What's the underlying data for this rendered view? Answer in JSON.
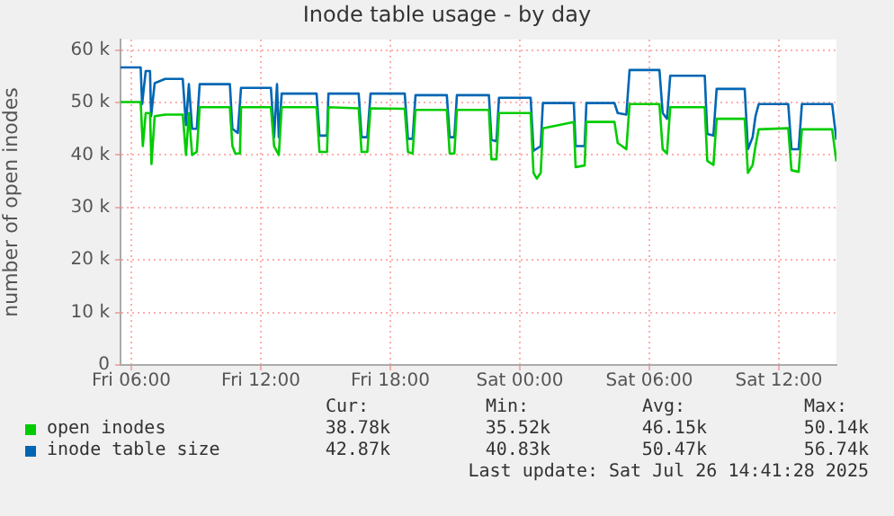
{
  "chart_data": {
    "type": "line",
    "title": "Inode table usage - by day",
    "ylabel": "number of open inodes",
    "xlim": [
      "2025-07-25T05:30",
      "2025-07-26T14:40"
    ],
    "xticks": [
      {
        "value": "2025-07-25T06:00",
        "label": "Fri 06:00"
      },
      {
        "value": "2025-07-25T12:00",
        "label": "Fri 12:00"
      },
      {
        "value": "2025-07-25T18:00",
        "label": "Fri 18:00"
      },
      {
        "value": "2025-07-26T00:00",
        "label": "Sat 00:00"
      },
      {
        "value": "2025-07-26T06:00",
        "label": "Sat 06:00"
      },
      {
        "value": "2025-07-26T12:00",
        "label": "Sat 12:00"
      }
    ],
    "ylim": [
      0,
      62
    ],
    "yticks": [
      {
        "value": 0,
        "label": "0"
      },
      {
        "value": 10,
        "label": "10 k"
      },
      {
        "value": 20,
        "label": "20 k"
      },
      {
        "value": 30,
        "label": "30 k"
      },
      {
        "value": 40,
        "label": "40 k"
      },
      {
        "value": 50,
        "label": "50 k"
      },
      {
        "value": 60,
        "label": "60 k"
      }
    ],
    "grid": true,
    "legend": "bottom left",
    "marker": "none",
    "line_style": "solid",
    "series": [
      {
        "name": "open inodes",
        "color": "#00cc00",
        "x": [
          "2025-07-25T05:30",
          "2025-07-25T06:26",
          "2025-07-25T06:32",
          "2025-07-25T06:40",
          "2025-07-25T06:52",
          "2025-07-25T06:56",
          "2025-07-25T07:05",
          "2025-07-25T07:34",
          "2025-07-25T08:23",
          "2025-07-25T08:32",
          "2025-07-25T08:40",
          "2025-07-25T08:49",
          "2025-07-25T09:02",
          "2025-07-25T09:10",
          "2025-07-25T10:34",
          "2025-07-25T10:41",
          "2025-07-25T10:49",
          "2025-07-25T11:02",
          "2025-07-25T11:05",
          "2025-07-25T12:28",
          "2025-07-25T12:37",
          "2025-07-25T12:50",
          "2025-07-25T12:58",
          "2025-07-25T14:35",
          "2025-07-25T14:43",
          "2025-07-25T15:04",
          "2025-07-25T15:08",
          "2025-07-25T16:32",
          "2025-07-25T16:40",
          "2025-07-25T16:56",
          "2025-07-25T17:05",
          "2025-07-25T18:40",
          "2025-07-25T18:49",
          "2025-07-25T19:02",
          "2025-07-25T19:10",
          "2025-07-25T20:37",
          "2025-07-25T20:45",
          "2025-07-25T20:58",
          "2025-07-25T21:05",
          "2025-07-25T22:34",
          "2025-07-25T22:41",
          "2025-07-25T22:55",
          "2025-07-25T23:02",
          "2025-07-26T00:30",
          "2025-07-26T00:38",
          "2025-07-26T00:47",
          "2025-07-26T00:58",
          "2025-07-26T01:04",
          "2025-07-26T02:30",
          "2025-07-26T02:35",
          "2025-07-26T03:00",
          "2025-07-26T03:05",
          "2025-07-26T04:23",
          "2025-07-26T04:32",
          "2025-07-26T04:56",
          "2025-07-26T05:05",
          "2025-07-26T06:28",
          "2025-07-26T06:37",
          "2025-07-26T06:49",
          "2025-07-26T06:58",
          "2025-07-26T08:34",
          "2025-07-26T08:41",
          "2025-07-26T08:58",
          "2025-07-26T09:07",
          "2025-07-26T10:25",
          "2025-07-26T10:34",
          "2025-07-26T10:47",
          "2025-07-26T10:55",
          "2025-07-26T11:04",
          "2025-07-26T12:26",
          "2025-07-26T12:35",
          "2025-07-26T12:55",
          "2025-07-26T13:04",
          "2025-07-26T14:28",
          "2025-07-26T14:40"
        ],
        "values": [
          50.1,
          50.1,
          41.7,
          48,
          48,
          38.3,
          47.4,
          47.7,
          47.7,
          40,
          48,
          40,
          40.6,
          49.1,
          49.1,
          41.7,
          40.3,
          40.3,
          49.1,
          49.1,
          41.7,
          40,
          49.1,
          49.1,
          40.6,
          40.6,
          49.1,
          48.9,
          40.6,
          40.6,
          48.9,
          48.8,
          40.6,
          40.3,
          48.6,
          48.6,
          40.3,
          40.3,
          48.6,
          48.6,
          39.2,
          39.2,
          48,
          48,
          36.6,
          35.5,
          36.6,
          45.1,
          46.3,
          37.7,
          38,
          46.3,
          46.3,
          42.3,
          41.1,
          49.7,
          49.7,
          41.1,
          40.3,
          49.1,
          49.1,
          38.9,
          38.1,
          46.9,
          46.9,
          36.6,
          38.1,
          41.7,
          44.9,
          45.1,
          37.1,
          36.8,
          44.9,
          44.9,
          38.8
        ]
      },
      {
        "name": "inode table size",
        "color": "#0066b3",
        "x": [
          "2025-07-25T05:30",
          "2025-07-25T06:26",
          "2025-07-25T06:30",
          "2025-07-25T06:40",
          "2025-07-25T06:52",
          "2025-07-25T06:55",
          "2025-07-25T07:05",
          "2025-07-25T07:34",
          "2025-07-25T08:23",
          "2025-07-25T08:32",
          "2025-07-25T08:40",
          "2025-07-25T08:49",
          "2025-07-25T09:02",
          "2025-07-25T09:10",
          "2025-07-25T10:34",
          "2025-07-25T10:41",
          "2025-07-25T10:56",
          "2025-07-25T11:05",
          "2025-07-25T12:28",
          "2025-07-25T12:37",
          "2025-07-25T12:45",
          "2025-07-25T12:50",
          "2025-07-25T12:58",
          "2025-07-25T14:35",
          "2025-07-25T14:43",
          "2025-07-25T15:04",
          "2025-07-25T15:08",
          "2025-07-25T16:32",
          "2025-07-25T16:40",
          "2025-07-25T16:56",
          "2025-07-25T17:05",
          "2025-07-25T18:40",
          "2025-07-25T18:49",
          "2025-07-25T19:02",
          "2025-07-25T19:10",
          "2025-07-25T20:37",
          "2025-07-25T20:45",
          "2025-07-25T20:58",
          "2025-07-25T21:05",
          "2025-07-25T22:34",
          "2025-07-25T22:41",
          "2025-07-25T22:55",
          "2025-07-25T23:02",
          "2025-07-26T00:30",
          "2025-07-26T00:38",
          "2025-07-26T00:58",
          "2025-07-26T01:04",
          "2025-07-26T02:30",
          "2025-07-26T02:35",
          "2025-07-26T03:00",
          "2025-07-26T03:05",
          "2025-07-26T04:23",
          "2025-07-26T04:32",
          "2025-07-26T04:56",
          "2025-07-26T05:05",
          "2025-07-26T06:28",
          "2025-07-26T06:37",
          "2025-07-26T06:49",
          "2025-07-26T06:58",
          "2025-07-26T08:34",
          "2025-07-26T08:41",
          "2025-07-26T08:58",
          "2025-07-26T09:07",
          "2025-07-26T10:25",
          "2025-07-26T10:34",
          "2025-07-26T10:47",
          "2025-07-26T10:55",
          "2025-07-26T11:04",
          "2025-07-26T12:26",
          "2025-07-26T12:35",
          "2025-07-26T12:55",
          "2025-07-26T13:04",
          "2025-07-26T14:28",
          "2025-07-26T14:40"
        ],
        "values": [
          56.7,
          56.7,
          49.7,
          56,
          56,
          47.4,
          53.7,
          54.5,
          54.5,
          45.7,
          53.5,
          45,
          45,
          53.5,
          53.5,
          45,
          44.2,
          52.8,
          52.8,
          43.4,
          53.5,
          43.4,
          51.7,
          51.7,
          43.7,
          43.7,
          51.7,
          51.7,
          43.4,
          43.4,
          51.7,
          51.7,
          43.1,
          43.1,
          51.4,
          51.4,
          43.4,
          43.4,
          51.4,
          51.4,
          42.9,
          42.6,
          50.9,
          50.9,
          40.8,
          41.7,
          49.9,
          49.9,
          41.7,
          41.7,
          49.9,
          49.9,
          48,
          47.7,
          56.2,
          56.2,
          48,
          46.9,
          55.1,
          55.1,
          44,
          43.7,
          52.6,
          52.6,
          41.1,
          43.4,
          47.4,
          49.7,
          49.7,
          41.1,
          41.1,
          49.7,
          49.7,
          42.9
        ]
      }
    ],
    "annotations": [
      "Cur:",
      "Min:",
      "Avg:",
      "Max:",
      "38.78k",
      "35.52k",
      "46.15k",
      "50.14k",
      "42.87k",
      "40.83k",
      "50.47k",
      "56.74k",
      "Last update: Sat Jul 26 14:41:28 2025"
    ]
  }
}
